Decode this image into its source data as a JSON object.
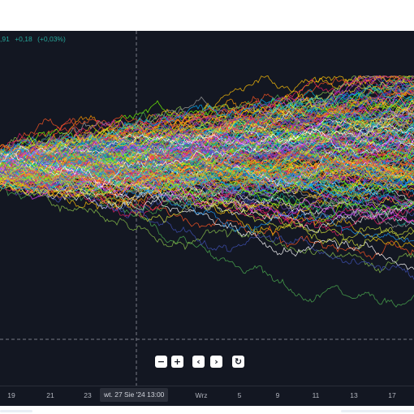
{
  "legend": {
    "value_prefix": ",91",
    "change": "+0,18",
    "change_percent": "(+0,03%)",
    "change_color": "#26a69a"
  },
  "time_axis": {
    "ticks": [
      "19",
      "21",
      "23",
      "Wrz",
      "5",
      "9",
      "11",
      "13",
      "17"
    ],
    "crosshair_label": "wt. 27 Sie '24  13:00"
  },
  "nav_controls": [
    {
      "label": "−",
      "icon": "zoom-out-icon"
    },
    {
      "label": "+",
      "icon": "zoom-in-icon"
    },
    {
      "label": "‹",
      "icon": "chevron-left-icon"
    },
    {
      "label": "›",
      "icon": "chevron-right-icon"
    },
    {
      "label": "↻",
      "icon": "reset-icon"
    }
  ],
  "colors": {
    "background": "#131722",
    "axis_text": "#b2b5be",
    "crosshair": "#787b86",
    "series_palette": [
      "#e91e63",
      "#2196f3",
      "#4caf50",
      "#ffeb3b",
      "#ff9800",
      "#9c27b0",
      "#00bcd4",
      "#f44336",
      "#8bc34a",
      "#ffffff",
      "#3f51b5",
      "#cddc39",
      "#ff5722",
      "#009688",
      "#673ab7",
      "#03a9f4",
      "#e040fb",
      "#76ff03",
      "#ffc107",
      "#9e9e9e"
    ]
  },
  "chart_data": {
    "type": "line",
    "description_of_content": "",
    "series_count": 220,
    "x": [
      "19",
      "21",
      "23",
      "Wrz",
      "5",
      "9",
      "11",
      "13",
      "17"
    ]
  }
}
